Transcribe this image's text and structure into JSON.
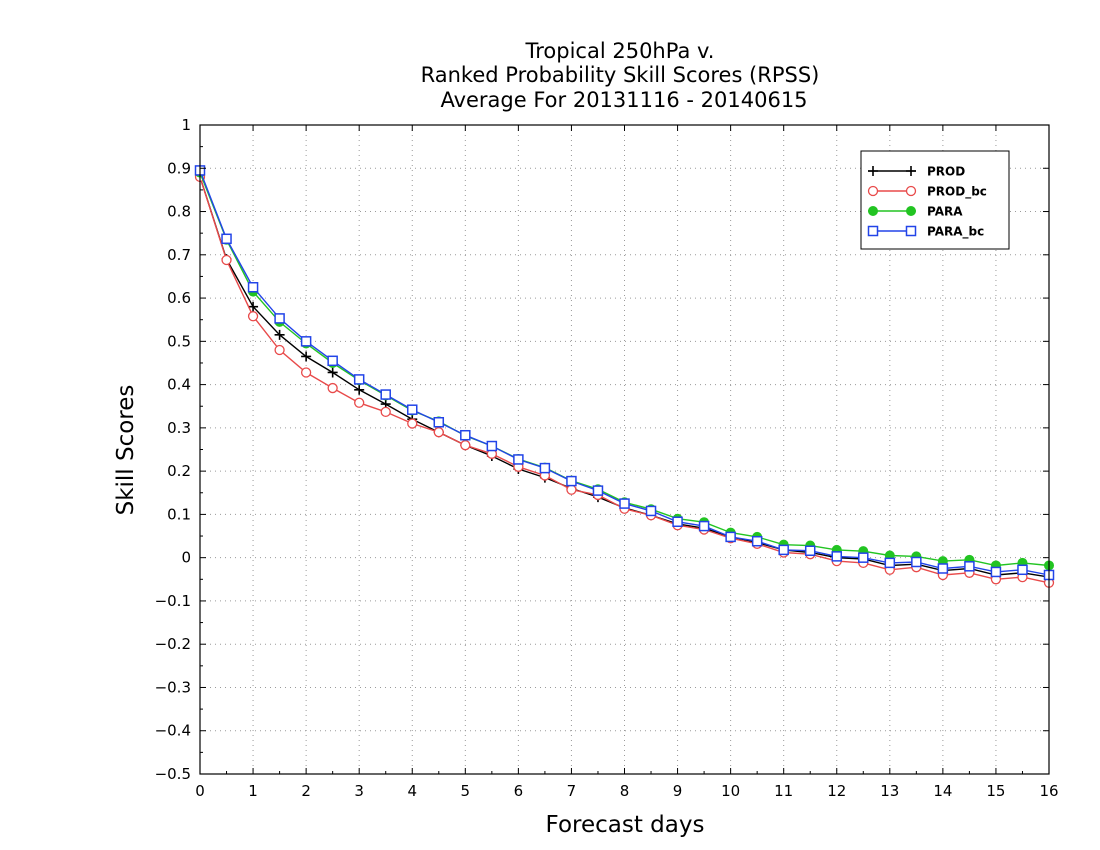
{
  "chart_data": {
    "type": "line",
    "title_lines": [
      "Tropical 250hPa v.",
      "Ranked Probability Skill Scores (RPSS)",
      "Average For 20131116 - 20140615"
    ],
    "xlabel": "Forecast days",
    "ylabel": "Skill Scores",
    "xlim": [
      0,
      16
    ],
    "ylim": [
      -0.5,
      1
    ],
    "x_ticks": [
      0,
      1,
      2,
      3,
      4,
      5,
      6,
      7,
      8,
      9,
      10,
      11,
      12,
      13,
      14,
      15,
      16
    ],
    "x_tick_labels": [
      "0",
      "1",
      "2",
      "3",
      "4",
      "5",
      "6",
      "7",
      "8",
      "9",
      "10",
      "11",
      "12",
      "13",
      "14",
      "15",
      "16"
    ],
    "y_ticks": [
      -0.5,
      -0.4,
      -0.3,
      -0.2,
      -0.1,
      0,
      0.1,
      0.2,
      0.3,
      0.4,
      0.5,
      0.6,
      0.7,
      0.8,
      0.9,
      1
    ],
    "y_tick_labels": [
      "−0.5",
      "−0.4",
      "−0.3",
      "−0.2",
      "−0.1",
      "0",
      "0.1",
      "0.2",
      "0.3",
      "0.4",
      "0.5",
      "0.6",
      "0.7",
      "0.8",
      "0.9",
      "1"
    ],
    "grid": true,
    "legend_position": "top-right",
    "x": [
      0,
      0.5,
      1,
      1.5,
      2,
      2.5,
      3,
      3.5,
      4,
      4.5,
      5,
      5.5,
      6,
      6.5,
      7,
      7.5,
      8,
      8.5,
      9,
      9.5,
      10,
      10.5,
      11,
      11.5,
      12,
      12.5,
      13,
      13.5,
      14,
      14.5,
      15,
      15.5,
      16
    ],
    "series": [
      {
        "name": "PROD",
        "color": "#000000",
        "marker": "plus",
        "values": [
          0.88,
          0.69,
          0.58,
          0.515,
          0.465,
          0.428,
          0.388,
          0.355,
          0.32,
          0.29,
          0.26,
          0.235,
          0.205,
          0.185,
          0.16,
          0.14,
          0.115,
          0.098,
          0.078,
          0.068,
          0.048,
          0.035,
          0.018,
          0.012,
          0.0,
          -0.003,
          -0.018,
          -0.015,
          -0.03,
          -0.025,
          -0.04,
          -0.035,
          -0.045
        ]
      },
      {
        "name": "PROD_bc",
        "color": "#e84a4a",
        "marker": "circle",
        "values": [
          0.88,
          0.688,
          0.558,
          0.48,
          0.428,
          0.392,
          0.358,
          0.337,
          0.31,
          0.29,
          0.26,
          0.24,
          0.21,
          0.19,
          0.157,
          0.145,
          0.113,
          0.098,
          0.075,
          0.065,
          0.045,
          0.032,
          0.012,
          0.008,
          -0.008,
          -0.012,
          -0.028,
          -0.022,
          -0.04,
          -0.035,
          -0.05,
          -0.045,
          -0.058
        ]
      },
      {
        "name": "PARA",
        "color": "#22c422",
        "marker": "filled-circle",
        "values": [
          0.89,
          0.735,
          0.615,
          0.545,
          0.495,
          0.45,
          0.41,
          0.375,
          0.34,
          0.315,
          0.282,
          0.258,
          0.228,
          0.208,
          0.178,
          0.158,
          0.128,
          0.112,
          0.09,
          0.082,
          0.058,
          0.048,
          0.03,
          0.028,
          0.018,
          0.015,
          0.005,
          0.003,
          -0.008,
          -0.005,
          -0.018,
          -0.012,
          -0.018
        ]
      },
      {
        "name": "PARA_bc",
        "color": "#2244e8",
        "marker": "square",
        "values": [
          0.895,
          0.737,
          0.625,
          0.553,
          0.5,
          0.455,
          0.412,
          0.377,
          0.342,
          0.313,
          0.283,
          0.258,
          0.227,
          0.207,
          0.177,
          0.155,
          0.125,
          0.108,
          0.083,
          0.073,
          0.048,
          0.038,
          0.018,
          0.016,
          0.003,
          0.0,
          -0.012,
          -0.01,
          -0.025,
          -0.02,
          -0.033,
          -0.028,
          -0.04
        ]
      }
    ]
  }
}
